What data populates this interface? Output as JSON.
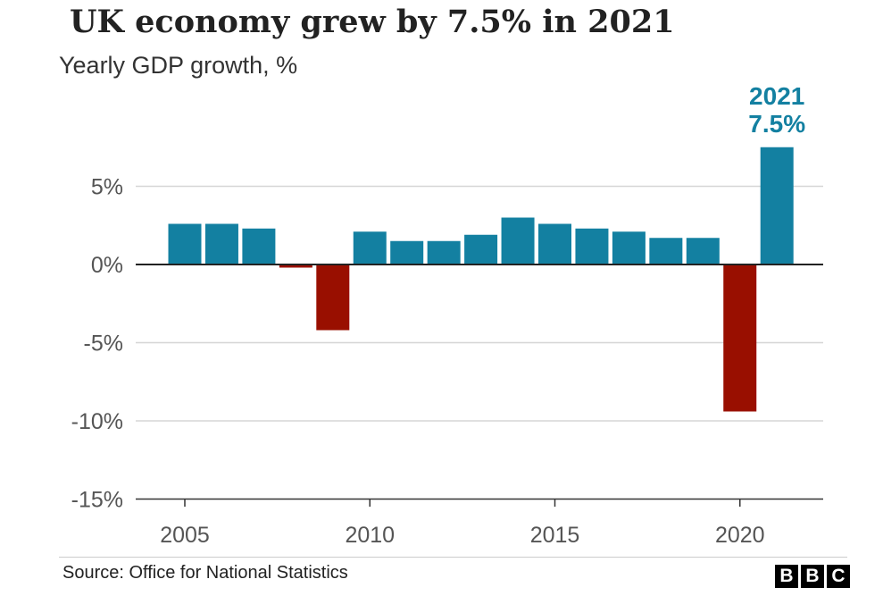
{
  "title": "UK economy grew by 7.5% in 2021",
  "subtitle": "Yearly GDP growth, %",
  "source": "Source: Office for National Statistics",
  "logo": [
    "B",
    "B",
    "C"
  ],
  "colors": {
    "positive": "#1380a1",
    "negative": "#990f00",
    "highlight": "#1380a1"
  },
  "chart_data": {
    "type": "bar",
    "title": "UK economy grew by 7.5% in 2021",
    "ylabel": "Yearly GDP growth, %",
    "categories": [
      2005,
      2006,
      2007,
      2008,
      2009,
      2010,
      2011,
      2012,
      2013,
      2014,
      2015,
      2016,
      2017,
      2018,
      2019,
      2020,
      2021
    ],
    "values": [
      2.6,
      2.6,
      2.3,
      -0.2,
      -4.2,
      2.1,
      1.5,
      1.5,
      1.9,
      3.0,
      2.6,
      2.3,
      2.1,
      1.7,
      1.7,
      -9.4,
      7.5
    ],
    "ylim": [
      -15,
      8
    ],
    "yticks": [
      5,
      0,
      -5,
      -10,
      -15
    ],
    "ytick_labels": [
      "5%",
      "0%",
      "-5%",
      "-10%",
      "-15%"
    ],
    "xticks": [
      2005,
      2010,
      2015,
      2020
    ],
    "xtick_labels": [
      "2005",
      "2010",
      "2015",
      "2020"
    ],
    "annotation": {
      "year_label": "2021",
      "value_label": "7.5%"
    },
    "grid": true
  }
}
